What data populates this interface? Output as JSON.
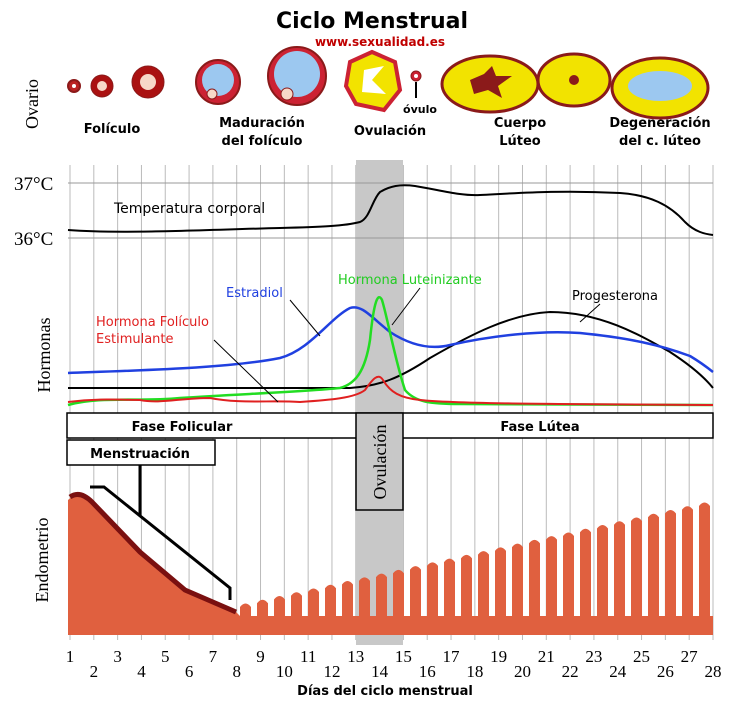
{
  "title": "Ciclo Menstrual",
  "source": "www.sexualidad.es",
  "ovary": {
    "label": "Ovario",
    "stages": [
      [
        "Folículo"
      ],
      [
        "Maduración",
        "del folículo"
      ],
      [
        "Ovulación"
      ],
      [
        "Cuerpo",
        "Lúteo"
      ],
      [
        "Degeneración",
        "del c. lúteo"
      ]
    ],
    "ovum": "óvulo"
  },
  "temperature": {
    "labels": [
      "37°C",
      "36°C"
    ],
    "curve": "Temperatura corporal"
  },
  "hormones": {
    "label": "Hormonas",
    "estradiol": "Estradiol",
    "lh": "Hormona Luteinizante",
    "progesterone": "Progesterona",
    "fsh": [
      "Hormona Folículo",
      "Estimulante"
    ]
  },
  "phases": {
    "follicular": "Fase Folicular",
    "luteal": "Fase Lútea",
    "ovulation": "Ovulación",
    "menstruation": "Menstruación"
  },
  "endometrium": {
    "label": "Endometrio"
  },
  "axis": {
    "days": [
      1,
      2,
      3,
      4,
      5,
      6,
      7,
      8,
      9,
      10,
      11,
      12,
      13,
      14,
      15,
      16,
      17,
      18,
      19,
      20,
      21,
      22,
      23,
      24,
      25,
      26,
      27,
      28
    ],
    "title": "Días del ciclo menstrual"
  }
}
